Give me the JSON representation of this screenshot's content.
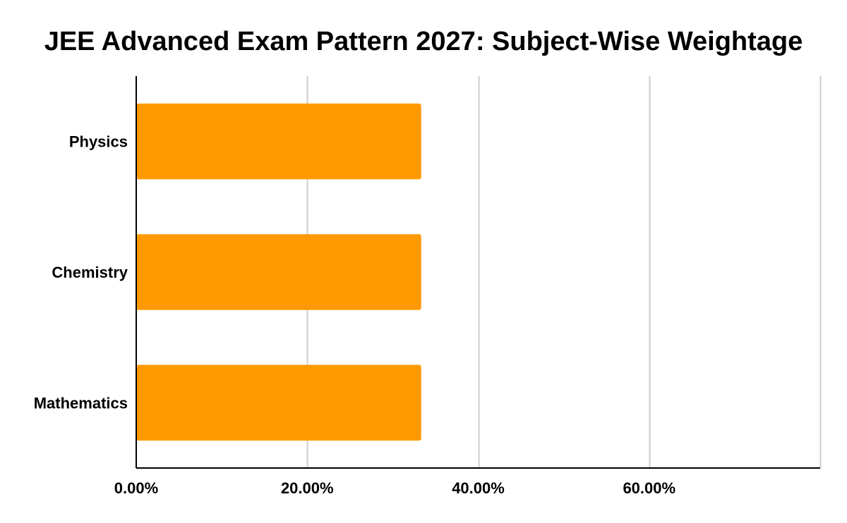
{
  "chart_data": {
    "type": "bar",
    "orientation": "horizontal",
    "title": "JEE Advanced Exam Pattern 2027: Subject-Wise Weightage",
    "xlabel": "",
    "ylabel": "",
    "categories": [
      "Physics",
      "Chemistry",
      "Mathematics"
    ],
    "values": [
      33.33,
      33.33,
      33.33
    ],
    "xlim": [
      0,
      80
    ],
    "xticks": [
      0,
      20,
      40,
      60
    ],
    "xtick_labels": [
      "0.00%",
      "20.00%",
      "40.00%",
      "60.00%"
    ],
    "grid": "vertical",
    "bar_color": "#FF9900"
  }
}
